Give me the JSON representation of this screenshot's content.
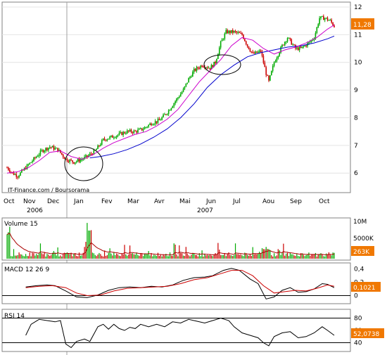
{
  "chart_data": [
    {
      "type": "candlestick",
      "panel": "price",
      "source_label": "IT-Finance.com / Boursorama",
      "ylim": [
        5.6,
        12.1
      ],
      "y_ticks": [
        6,
        7,
        8,
        9,
        10,
        11,
        12
      ],
      "y_tick_labels": [
        "6",
        "7",
        "8",
        "9",
        "10",
        "11",
        "12"
      ],
      "last_value_label": "11,28",
      "x_month_labels": [
        "Oct",
        "Nov",
        "Dec",
        "Jan",
        "Fev",
        "Mar",
        "Avr",
        "Mai",
        "Jun",
        "Jul",
        "Aou",
        "Sep",
        "Oct"
      ],
      "x_year_labels": [
        "2006",
        "2007"
      ],
      "price_path": [
        [
          0,
          6.2
        ],
        [
          4,
          6.0
        ],
        [
          8,
          5.9
        ],
        [
          14,
          6.2
        ],
        [
          20,
          6.5
        ],
        [
          26,
          6.8
        ],
        [
          32,
          6.95
        ],
        [
          38,
          6.85
        ],
        [
          44,
          6.5
        ],
        [
          50,
          6.4
        ],
        [
          56,
          6.5
        ],
        [
          60,
          6.6
        ],
        [
          66,
          6.8
        ],
        [
          72,
          7.2
        ],
        [
          78,
          7.3
        ],
        [
          84,
          7.4
        ],
        [
          90,
          7.5
        ],
        [
          96,
          7.5
        ],
        [
          102,
          7.6
        ],
        [
          108,
          7.8
        ],
        [
          114,
          7.9
        ],
        [
          120,
          8.2
        ],
        [
          126,
          8.6
        ],
        [
          132,
          9.0
        ],
        [
          136,
          9.4
        ],
        [
          140,
          9.7
        ],
        [
          146,
          9.9
        ],
        [
          152,
          9.8
        ],
        [
          156,
          10.0
        ],
        [
          160,
          10.7
        ],
        [
          164,
          11.1
        ],
        [
          170,
          11.1
        ],
        [
          176,
          11.0
        ],
        [
          180,
          10.6
        ],
        [
          184,
          10.3
        ],
        [
          190,
          10.4
        ],
        [
          194,
          9.6
        ],
        [
          196,
          9.3
        ],
        [
          200,
          10.0
        ],
        [
          206,
          10.6
        ],
        [
          210,
          10.9
        ],
        [
          216,
          10.5
        ],
        [
          220,
          10.5
        ],
        [
          226,
          10.7
        ],
        [
          230,
          10.9
        ],
        [
          234,
          11.6
        ],
        [
          238,
          11.6
        ],
        [
          242,
          11.5
        ],
        [
          245,
          11.3
        ]
      ],
      "ma_fast": [
        [
          0,
          6.0
        ],
        [
          8,
          6.05
        ],
        [
          16,
          6.2
        ],
        [
          24,
          6.45
        ],
        [
          32,
          6.75
        ],
        [
          40,
          6.8
        ],
        [
          48,
          6.6
        ],
        [
          56,
          6.5
        ],
        [
          64,
          6.65
        ],
        [
          72,
          6.9
        ],
        [
          80,
          7.1
        ],
        [
          88,
          7.25
        ],
        [
          96,
          7.4
        ],
        [
          104,
          7.5
        ],
        [
          112,
          7.7
        ],
        [
          120,
          7.95
        ],
        [
          128,
          8.3
        ],
        [
          136,
          8.8
        ],
        [
          144,
          9.3
        ],
        [
          152,
          9.7
        ],
        [
          160,
          10.1
        ],
        [
          168,
          10.6
        ],
        [
          176,
          10.9
        ],
        [
          184,
          10.8
        ],
        [
          192,
          10.5
        ],
        [
          200,
          10.3
        ],
        [
          208,
          10.45
        ],
        [
          216,
          10.55
        ],
        [
          224,
          10.7
        ],
        [
          232,
          10.9
        ],
        [
          240,
          11.2
        ],
        [
          245,
          11.35
        ]
      ],
      "ma_slow": [
        [
          62,
          6.55
        ],
        [
          70,
          6.6
        ],
        [
          80,
          6.7
        ],
        [
          90,
          6.85
        ],
        [
          100,
          7.05
        ],
        [
          110,
          7.3
        ],
        [
          120,
          7.6
        ],
        [
          130,
          8.0
        ],
        [
          140,
          8.5
        ],
        [
          150,
          9.1
        ],
        [
          160,
          9.55
        ],
        [
          170,
          9.9
        ],
        [
          180,
          10.2
        ],
        [
          190,
          10.35
        ],
        [
          200,
          10.45
        ],
        [
          210,
          10.55
        ],
        [
          220,
          10.6
        ],
        [
          230,
          10.7
        ],
        [
          240,
          10.85
        ],
        [
          245,
          10.95
        ]
      ]
    },
    {
      "type": "bar",
      "panel": "volume",
      "title": "Volume 15",
      "y_tick_labels": [
        "10M",
        "5000K"
      ],
      "last_value_label": "263K",
      "ylim": [
        0,
        11000000
      ]
    },
    {
      "type": "line",
      "panel": "macd",
      "title": "MACD 12 26 9",
      "ylim": [
        -0.1,
        0.45
      ],
      "y_ticks": [
        0,
        0.2,
        0.4
      ],
      "y_tick_labels": [
        "0",
        "0,2",
        "0,4"
      ],
      "last_value_label": "0,1021",
      "macd": [
        [
          14,
          0.13
        ],
        [
          22,
          0.15
        ],
        [
          30,
          0.16
        ],
        [
          36,
          0.15
        ],
        [
          44,
          0.07
        ],
        [
          52,
          -0.02
        ],
        [
          60,
          -0.03
        ],
        [
          68,
          0.01
        ],
        [
          76,
          0.08
        ],
        [
          84,
          0.12
        ],
        [
          92,
          0.13
        ],
        [
          100,
          0.12
        ],
        [
          108,
          0.14
        ],
        [
          116,
          0.13
        ],
        [
          124,
          0.16
        ],
        [
          132,
          0.23
        ],
        [
          140,
          0.27
        ],
        [
          148,
          0.28
        ],
        [
          154,
          0.3
        ],
        [
          162,
          0.38
        ],
        [
          168,
          0.41
        ],
        [
          174,
          0.38
        ],
        [
          182,
          0.25
        ],
        [
          188,
          0.18
        ],
        [
          194,
          -0.05
        ],
        [
          200,
          -0.02
        ],
        [
          206,
          0.08
        ],
        [
          212,
          0.12
        ],
        [
          218,
          0.05
        ],
        [
          224,
          0.06
        ],
        [
          230,
          0.1
        ],
        [
          236,
          0.18
        ],
        [
          240,
          0.17
        ],
        [
          245,
          0.12
        ]
      ],
      "signal": [
        [
          14,
          0.12
        ],
        [
          24,
          0.14
        ],
        [
          34,
          0.15
        ],
        [
          44,
          0.12
        ],
        [
          52,
          0.04
        ],
        [
          60,
          0.0
        ],
        [
          70,
          0.01
        ],
        [
          80,
          0.07
        ],
        [
          90,
          0.11
        ],
        [
          100,
          0.12
        ],
        [
          110,
          0.13
        ],
        [
          120,
          0.14
        ],
        [
          130,
          0.18
        ],
        [
          140,
          0.24
        ],
        [
          150,
          0.27
        ],
        [
          160,
          0.33
        ],
        [
          168,
          0.38
        ],
        [
          176,
          0.38
        ],
        [
          184,
          0.3
        ],
        [
          192,
          0.15
        ],
        [
          200,
          0.04
        ],
        [
          208,
          0.06
        ],
        [
          216,
          0.08
        ],
        [
          224,
          0.07
        ],
        [
          232,
          0.11
        ],
        [
          240,
          0.16
        ],
        [
          245,
          0.14
        ]
      ]
    },
    {
      "type": "line",
      "panel": "rsi",
      "title": "RSI 14",
      "ylim": [
        28,
        92
      ],
      "y_ticks": [
        40,
        60,
        80
      ],
      "y_tick_labels": [
        "40",
        "60",
        "80"
      ],
      "last_value_label": "52,0738",
      "rsi": [
        [
          14,
          52
        ],
        [
          18,
          70
        ],
        [
          24,
          78
        ],
        [
          30,
          76
        ],
        [
          36,
          74
        ],
        [
          40,
          76
        ],
        [
          44,
          38
        ],
        [
          48,
          32
        ],
        [
          52,
          42
        ],
        [
          58,
          46
        ],
        [
          62,
          42
        ],
        [
          68,
          66
        ],
        [
          72,
          70
        ],
        [
          76,
          62
        ],
        [
          80,
          70
        ],
        [
          84,
          63
        ],
        [
          88,
          60
        ],
        [
          92,
          65
        ],
        [
          96,
          63
        ],
        [
          100,
          70
        ],
        [
          106,
          66
        ],
        [
          112,
          70
        ],
        [
          118,
          66
        ],
        [
          124,
          74
        ],
        [
          130,
          72
        ],
        [
          136,
          78
        ],
        [
          142,
          75
        ],
        [
          148,
          72
        ],
        [
          154,
          76
        ],
        [
          160,
          80
        ],
        [
          166,
          76
        ],
        [
          170,
          66
        ],
        [
          176,
          56
        ],
        [
          182,
          52
        ],
        [
          188,
          48
        ],
        [
          192,
          40
        ],
        [
          196,
          35
        ],
        [
          200,
          50
        ],
        [
          206,
          56
        ],
        [
          212,
          58
        ],
        [
          218,
          48
        ],
        [
          224,
          50
        ],
        [
          230,
          56
        ],
        [
          236,
          66
        ],
        [
          240,
          60
        ],
        [
          245,
          52
        ]
      ]
    }
  ]
}
